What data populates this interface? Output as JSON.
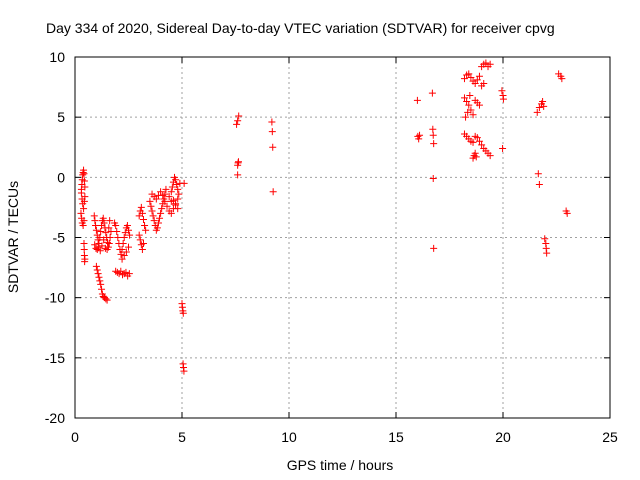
{
  "chart_data": {
    "type": "scatter",
    "title": "Day 334 of 2020, Sidereal Day-to-day VTEC variation (SDTVAR) for receiver cpvg",
    "xlabel": "GPS time / hours",
    "ylabel": "SDTVAR / TECUs",
    "xlim": [
      0,
      25
    ],
    "ylim": [
      -20,
      10
    ],
    "xticks": [
      0,
      5,
      10,
      15,
      20,
      25
    ],
    "yticks": [
      -20,
      -15,
      -10,
      -5,
      0,
      5,
      10
    ],
    "xtick_labels": [
      "0",
      "5",
      "10",
      "15",
      "20",
      "25"
    ],
    "ytick_labels": [
      "-20",
      "-15",
      "-10",
      "-5",
      "0",
      "5",
      "10"
    ],
    "grid": true,
    "marker": "+",
    "color": "#ff0000",
    "points": [
      [
        0.3,
        -1.0
      ],
      [
        0.32,
        -0.6
      ],
      [
        0.34,
        -0.2
      ],
      [
        0.36,
        0.2
      ],
      [
        0.38,
        0.4
      ],
      [
        0.4,
        0.6
      ],
      [
        0.42,
        0.3
      ],
      [
        0.44,
        -0.3
      ],
      [
        0.46,
        -0.8
      ],
      [
        0.3,
        -1.3
      ],
      [
        0.33,
        -1.8
      ],
      [
        0.36,
        -2.2
      ],
      [
        0.4,
        -2.6
      ],
      [
        0.44,
        -2.0
      ],
      [
        0.46,
        -1.6
      ],
      [
        0.28,
        -3.0
      ],
      [
        0.31,
        -3.4
      ],
      [
        0.34,
        -3.8
      ],
      [
        0.38,
        -4.0
      ],
      [
        0.42,
        -3.6
      ],
      [
        0.42,
        -5.5
      ],
      [
        0.43,
        -6.0
      ],
      [
        0.44,
        -6.5
      ],
      [
        0.45,
        -7.0
      ],
      [
        0.46,
        -6.8
      ],
      [
        0.9,
        -3.2
      ],
      [
        0.93,
        -3.6
      ],
      [
        0.96,
        -4.0
      ],
      [
        1.0,
        -4.4
      ],
      [
        1.04,
        -4.8
      ],
      [
        1.08,
        -5.2
      ],
      [
        1.12,
        -5.5
      ],
      [
        1.16,
        -5.0
      ],
      [
        1.2,
        -4.5
      ],
      [
        1.24,
        -4.0
      ],
      [
        1.28,
        -3.6
      ],
      [
        1.32,
        -3.4
      ],
      [
        1.36,
        -3.8
      ],
      [
        1.4,
        -4.2
      ],
      [
        1.44,
        -4.6
      ],
      [
        1.48,
        -5.0
      ],
      [
        1.52,
        -5.4
      ],
      [
        1.56,
        -5.8
      ],
      [
        1.6,
        -5.5
      ],
      [
        1.64,
        -5.0
      ],
      [
        1.68,
        -4.5
      ],
      [
        0.92,
        -5.6
      ],
      [
        0.98,
        -5.9
      ],
      [
        1.04,
        -6.0
      ],
      [
        1.1,
        -5.8
      ],
      [
        1.18,
        -6.1
      ],
      [
        1.26,
        -5.7
      ],
      [
        1.34,
        -5.2
      ],
      [
        1.42,
        -5.9
      ],
      [
        1.5,
        -6.0
      ],
      [
        1.58,
        -4.2
      ],
      [
        1.62,
        -3.6
      ],
      [
        1.0,
        -7.4
      ],
      [
        1.04,
        -7.7
      ],
      [
        1.08,
        -8.0
      ],
      [
        1.12,
        -8.3
      ],
      [
        1.16,
        -8.6
      ],
      [
        1.2,
        -8.9
      ],
      [
        1.24,
        -9.3
      ],
      [
        1.28,
        -9.7
      ],
      [
        1.32,
        -9.9
      ],
      [
        1.38,
        -10.0
      ],
      [
        1.44,
        -10.1
      ],
      [
        1.5,
        -10.2
      ],
      [
        1.9,
        -4.0
      ],
      [
        1.95,
        -4.5
      ],
      [
        2.0,
        -5.0
      ],
      [
        2.05,
        -5.5
      ],
      [
        2.1,
        -6.0
      ],
      [
        2.15,
        -6.4
      ],
      [
        2.2,
        -6.0
      ],
      [
        2.25,
        -5.5
      ],
      [
        2.3,
        -5.0
      ],
      [
        2.35,
        -4.6
      ],
      [
        2.4,
        -4.2
      ],
      [
        2.45,
        -4.0
      ],
      [
        2.5,
        -4.4
      ],
      [
        2.55,
        -4.8
      ],
      [
        1.85,
        -3.8
      ],
      [
        1.9,
        -7.8
      ],
      [
        1.98,
        -7.9
      ],
      [
        2.06,
        -8.0
      ],
      [
        2.14,
        -7.8
      ],
      [
        2.22,
        -8.1
      ],
      [
        2.3,
        -8.0
      ],
      [
        2.38,
        -7.9
      ],
      [
        2.46,
        -8.2
      ],
      [
        2.54,
        -8.0
      ],
      [
        2.2,
        -6.8
      ],
      [
        2.3,
        -6.5
      ],
      [
        2.4,
        -6.2
      ],
      [
        2.5,
        -5.8
      ],
      [
        3.0,
        -3.2
      ],
      [
        3.05,
        -2.8
      ],
      [
        3.1,
        -2.5
      ],
      [
        3.15,
        -3.0
      ],
      [
        3.2,
        -3.5
      ],
      [
        3.25,
        -4.0
      ],
      [
        3.3,
        -4.4
      ],
      [
        3.0,
        -4.8
      ],
      [
        3.05,
        -5.2
      ],
      [
        3.1,
        -5.6
      ],
      [
        3.15,
        -6.0
      ],
      [
        3.2,
        -5.5
      ],
      [
        3.5,
        -2.0
      ],
      [
        3.55,
        -2.4
      ],
      [
        3.6,
        -2.8
      ],
      [
        3.65,
        -3.2
      ],
      [
        3.7,
        -3.6
      ],
      [
        3.75,
        -4.0
      ],
      [
        3.8,
        -4.4
      ],
      [
        3.85,
        -4.2
      ],
      [
        3.9,
        -3.8
      ],
      [
        3.95,
        -3.4
      ],
      [
        4.0,
        -3.0
      ],
      [
        4.05,
        -2.6
      ],
      [
        4.1,
        -2.2
      ],
      [
        4.15,
        -1.8
      ],
      [
        4.2,
        -1.4
      ],
      [
        4.25,
        -1.0
      ],
      [
        3.6,
        -1.4
      ],
      [
        3.7,
        -1.6
      ],
      [
        3.8,
        -1.8
      ],
      [
        3.9,
        -1.5
      ],
      [
        4.0,
        -1.2
      ],
      [
        4.1,
        -1.5
      ],
      [
        4.2,
        -2.0
      ],
      [
        4.3,
        -2.4
      ],
      [
        4.4,
        -2.8
      ],
      [
        4.5,
        -3.0
      ],
      [
        4.6,
        -2.6
      ],
      [
        4.7,
        -2.2
      ],
      [
        4.8,
        -1.8
      ],
      [
        4.4,
        -1.6
      ],
      [
        4.5,
        -1.2
      ],
      [
        4.55,
        -0.8
      ],
      [
        4.6,
        -0.4
      ],
      [
        4.65,
        0.0
      ],
      [
        4.7,
        -0.2
      ],
      [
        4.75,
        -0.6
      ],
      [
        4.8,
        -1.0
      ],
      [
        4.85,
        -1.4
      ],
      [
        4.5,
        -2.0
      ],
      [
        4.6,
        -1.9
      ],
      [
        4.7,
        -2.3
      ],
      [
        4.8,
        -2.6
      ],
      [
        4.9,
        -0.5
      ],
      [
        5.1,
        -0.5
      ],
      [
        5.0,
        -10.5
      ],
      [
        5.02,
        -10.8
      ],
      [
        5.04,
        -11.1
      ],
      [
        5.06,
        -11.3
      ],
      [
        5.05,
        -15.5
      ],
      [
        5.07,
        -15.8
      ],
      [
        5.09,
        -16.1
      ],
      [
        7.6,
        1.0
      ],
      [
        7.62,
        1.2
      ],
      [
        7.64,
        1.3
      ],
      [
        7.6,
        0.2
      ],
      [
        7.55,
        4.4
      ],
      [
        7.6,
        4.7
      ],
      [
        7.65,
        5.1
      ],
      [
        9.2,
        4.6
      ],
      [
        9.22,
        3.8
      ],
      [
        9.24,
        2.5
      ],
      [
        9.26,
        -1.2
      ],
      [
        16.0,
        6.4
      ],
      [
        16.02,
        3.4
      ],
      [
        16.06,
        3.2
      ],
      [
        16.1,
        3.5
      ],
      [
        16.7,
        7.0
      ],
      [
        16.72,
        4.0
      ],
      [
        16.74,
        3.5
      ],
      [
        16.76,
        2.8
      ],
      [
        16.74,
        -0.1
      ],
      [
        16.76,
        -5.9
      ],
      [
        18.2,
        8.2
      ],
      [
        18.3,
        8.5
      ],
      [
        18.4,
        8.6
      ],
      [
        18.5,
        8.3
      ],
      [
        18.6,
        8.0
      ],
      [
        18.7,
        7.8
      ],
      [
        18.8,
        8.1
      ],
      [
        18.9,
        8.4
      ],
      [
        19.0,
        9.2
      ],
      [
        19.1,
        9.4
      ],
      [
        19.2,
        9.5
      ],
      [
        19.3,
        9.2
      ],
      [
        19.4,
        9.4
      ],
      [
        18.2,
        6.6
      ],
      [
        18.3,
        6.3
      ],
      [
        18.4,
        6.0
      ],
      [
        18.5,
        5.6
      ],
      [
        18.6,
        5.2
      ],
      [
        18.7,
        6.4
      ],
      [
        18.8,
        6.2
      ],
      [
        18.9,
        6.0
      ],
      [
        18.25,
        5.0
      ],
      [
        18.35,
        5.4
      ],
      [
        18.45,
        6.8
      ],
      [
        18.2,
        3.6
      ],
      [
        18.3,
        3.4
      ],
      [
        18.4,
        3.2
      ],
      [
        18.5,
        3.0
      ],
      [
        18.6,
        2.9
      ],
      [
        18.7,
        3.4
      ],
      [
        18.8,
        3.3
      ],
      [
        18.9,
        3.0
      ],
      [
        19.0,
        2.7
      ],
      [
        19.1,
        2.4
      ],
      [
        19.2,
        2.2
      ],
      [
        19.3,
        2.0
      ],
      [
        19.4,
        1.8
      ],
      [
        18.6,
        1.6
      ],
      [
        18.65,
        1.8
      ],
      [
        18.7,
        2.0
      ],
      [
        18.75,
        1.7
      ],
      [
        19.0,
        7.6
      ],
      [
        19.1,
        7.8
      ],
      [
        19.95,
        7.2
      ],
      [
        20.0,
        6.8
      ],
      [
        20.02,
        6.5
      ],
      [
        19.98,
        2.4
      ],
      [
        21.6,
        5.4
      ],
      [
        21.7,
        5.8
      ],
      [
        21.8,
        6.1
      ],
      [
        21.85,
        6.3
      ],
      [
        21.9,
        5.9
      ],
      [
        21.65,
        0.3
      ],
      [
        21.7,
        -0.6
      ],
      [
        21.95,
        -5.1
      ],
      [
        22.0,
        -5.5
      ],
      [
        22.02,
        -5.9
      ],
      [
        22.04,
        -6.3
      ],
      [
        22.6,
        8.6
      ],
      [
        22.7,
        8.4
      ],
      [
        22.75,
        8.2
      ],
      [
        22.95,
        -2.8
      ],
      [
        23.0,
        -3.0
      ]
    ]
  }
}
